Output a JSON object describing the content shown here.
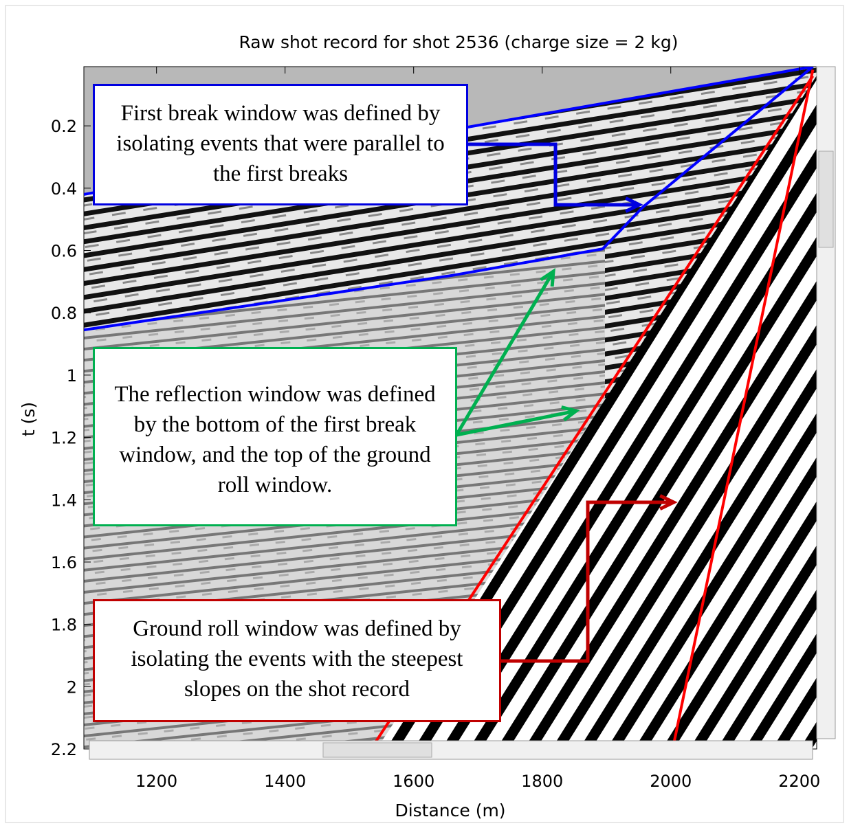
{
  "chart_data": {
    "type": "image",
    "title": "Raw shot record for shot 2536 (charge size = 2 kg)",
    "x_label": "Distance (m)",
    "y_label": "t (s)",
    "xlim": [
      1087,
      2227
    ],
    "ylim": [
      0.01,
      2.2
    ],
    "y_reversed": true,
    "xticks": [
      1200,
      1400,
      1600,
      1800,
      2000,
      2200
    ],
    "yticks": [
      0.2,
      0.4,
      0.6,
      0.8,
      1,
      1.2,
      1.4,
      1.6,
      1.8,
      2,
      2.2
    ],
    "lines": [
      {
        "color": "#0000ff",
        "x": [
          1087,
          2221
        ],
        "y": [
          0.42,
          0.01
        ]
      },
      {
        "color": "#0000ff",
        "x": [
          1087,
          1660,
          1894,
          1957,
          2221
        ],
        "y": [
          0.855,
          0.68,
          0.595,
          0.46,
          0.01
        ]
      },
      {
        "color": "#ff0000",
        "x": [
          2221,
          1540
        ],
        "y": [
          0.04,
          2.18
        ]
      },
      {
        "color": "#ff0000",
        "x": [
          2221,
          2005
        ],
        "y": [
          0.02,
          2.18
        ]
      }
    ],
    "annotations": [
      {
        "text": "First break window was defined by isolating events that were parallel to the first breaks",
        "color": "#0000e0"
      },
      {
        "text": "The reflection window was defined by the bottom of the first break window, and the top of the ground roll window.",
        "color": "#00b050"
      },
      {
        "text": "Ground roll window was defined by isolating the events with the steepest slopes on the shot record",
        "color": "#c00000"
      }
    ]
  }
}
